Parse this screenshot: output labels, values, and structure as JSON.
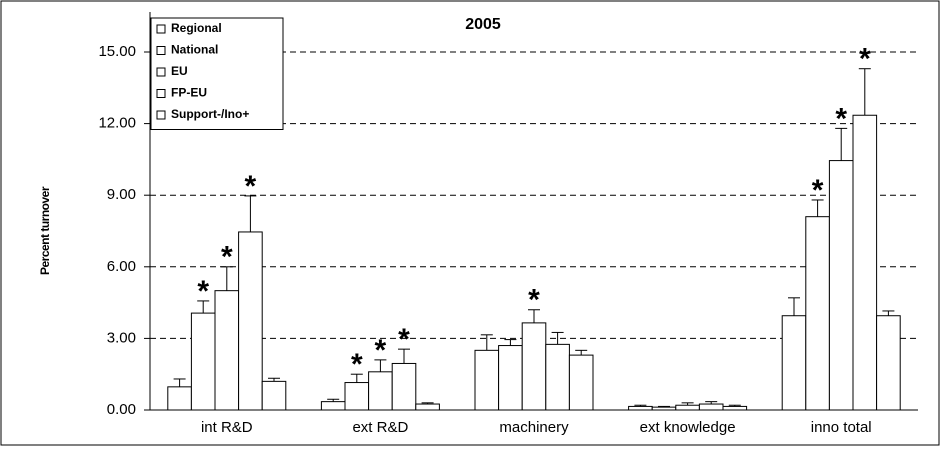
{
  "chart_data": {
    "type": "bar",
    "title": "2005",
    "y_label": "Percent turnover",
    "categories": [
      "int R&D",
      "ext R&D",
      "machinery",
      "ext knowledge",
      "inno total"
    ],
    "series": [
      {
        "name": "Regional",
        "color": "#ffffff",
        "values": [
          0.97,
          0.35,
          2.5,
          0.15,
          3.95
        ],
        "errors": [
          0.33,
          0.1,
          0.65,
          0.05,
          0.75
        ]
      },
      {
        "name": "National",
        "color": "#ffffff",
        "values": [
          4.06,
          1.15,
          2.7,
          0.12,
          8.1
        ],
        "errors": [
          0.51,
          0.35,
          0.25,
          0.03,
          0.7
        ]
      },
      {
        "name": "EU",
        "color": "#ffffff",
        "values": [
          5.0,
          1.6,
          3.65,
          0.2,
          10.45
        ],
        "errors": [
          1.0,
          0.5,
          0.55,
          0.1,
          1.35
        ]
      },
      {
        "name": "FP-EU",
        "color": "#ffffff",
        "values": [
          7.46,
          1.95,
          2.75,
          0.25,
          12.35
        ],
        "errors": [
          1.51,
          0.6,
          0.5,
          0.1,
          1.95
        ]
      },
      {
        "name": "Support-/Ino+",
        "color": "#ffffff",
        "values": [
          1.2,
          0.25,
          2.3,
          0.15,
          3.95
        ],
        "errors": [
          0.13,
          0.05,
          0.2,
          0.05,
          0.2
        ]
      }
    ],
    "annotations": [
      {
        "text": "*",
        "series": "National",
        "category": "int R&D"
      },
      {
        "text": "*",
        "series": "EU",
        "category": "int R&D"
      },
      {
        "text": "*",
        "series": "FP-EU",
        "category": "int R&D"
      },
      {
        "text": "*",
        "series": "National",
        "category": "ext R&D"
      },
      {
        "text": "*",
        "series": "EU",
        "category": "ext R&D"
      },
      {
        "text": "*",
        "series": "FP-EU",
        "category": "ext R&D"
      },
      {
        "text": "*",
        "series": "EU",
        "category": "machinery"
      },
      {
        "text": "*",
        "series": "National",
        "category": "inno total"
      },
      {
        "text": "*",
        "series": "EU",
        "category": "inno total"
      },
      {
        "text": "*",
        "series": "FP-EU",
        "category": "inno total"
      }
    ],
    "ylim": [
      0,
      15
    ],
    "yticks": [
      {
        "value": 0,
        "label": "0.00"
      },
      {
        "value": 3,
        "label": "3.00"
      },
      {
        "value": 6,
        "label": "6.00"
      },
      {
        "value": 9,
        "label": "9.00"
      },
      {
        "value": 12,
        "label": "12.00"
      },
      {
        "value": 15,
        "label": "15.00"
      }
    ],
    "grid": true,
    "legend": "upper left"
  }
}
